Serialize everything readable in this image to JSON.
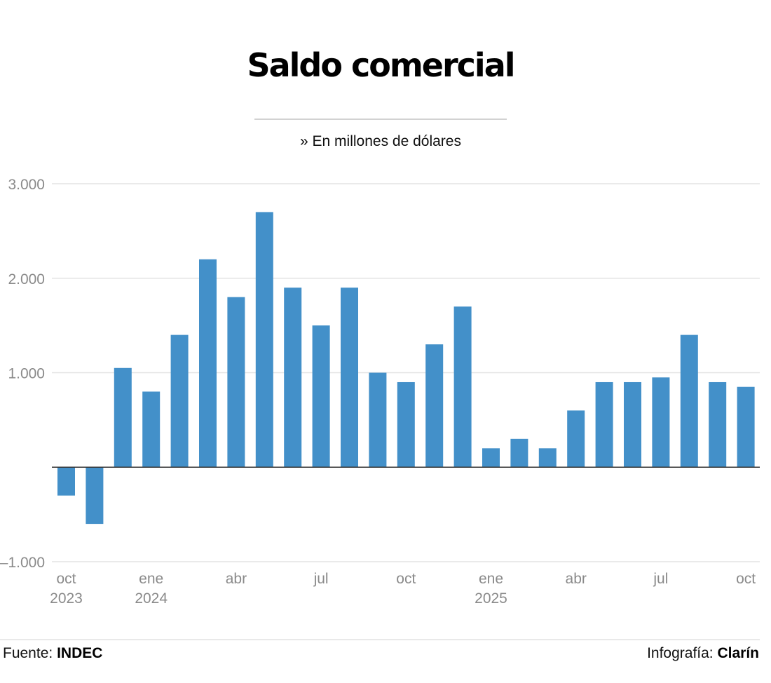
{
  "header": {
    "title": "Saldo comercial",
    "subtitle": "» En millones de dólares"
  },
  "footer": {
    "source_label": "Fuente:",
    "source_name": "INDEC",
    "credit_label": "Infografía:",
    "credit_name": "Clarín"
  },
  "colors": {
    "bar": "#4390c9",
    "grid": "#e3e3e3",
    "baseline": "#333333",
    "tick_text": "#8a8a8a",
    "axis_text": "#8a8a8a"
  },
  "chart_data": {
    "type": "bar",
    "title": "Saldo comercial",
    "subtitle": "» En millones de dólares",
    "categories": [
      "oct 2023",
      "nov 2023",
      "dic 2023",
      "ene 2024",
      "feb 2024",
      "mar 2024",
      "abr 2024",
      "may 2024",
      "jun 2024",
      "jul 2024",
      "ago 2024",
      "sep 2024",
      "oct 2024",
      "nov 2024",
      "dic 2024",
      "ene 2025",
      "feb 2025",
      "mar 2025",
      "abr 2025",
      "may 2025",
      "jun 2025",
      "jul 2025",
      "ago 2025",
      "sep 2025",
      "oct 2025"
    ],
    "values": [
      -300,
      -600,
      1050,
      800,
      1400,
      2200,
      1800,
      2700,
      1900,
      1500,
      1900,
      1000,
      900,
      1300,
      1700,
      200,
      300,
      200,
      600,
      900,
      900,
      950,
      1400,
      900,
      850
    ],
    "ylim": [
      -1000,
      3000
    ],
    "yticks": [
      {
        "value": 3000,
        "label": "3.000"
      },
      {
        "value": 2000,
        "label": "2.000"
      },
      {
        "value": 1000,
        "label": "1.000"
      },
      {
        "value": -1000,
        "label": "–1.000"
      }
    ],
    "xticks": [
      {
        "index": 0,
        "line1": "oct",
        "line2": "2023"
      },
      {
        "index": 3,
        "line1": "ene",
        "line2": "2024"
      },
      {
        "index": 6,
        "line1": "abr",
        "line2": ""
      },
      {
        "index": 9,
        "line1": "jul",
        "line2": ""
      },
      {
        "index": 12,
        "line1": "oct",
        "line2": ""
      },
      {
        "index": 15,
        "line1": "ene",
        "line2": "2025"
      },
      {
        "index": 18,
        "line1": "abr",
        "line2": ""
      },
      {
        "index": 21,
        "line1": "jul",
        "line2": ""
      },
      {
        "index": 24,
        "line1": "oct",
        "line2": ""
      }
    ],
    "xlabel": "",
    "ylabel": "",
    "grid": true,
    "legend": "none"
  }
}
